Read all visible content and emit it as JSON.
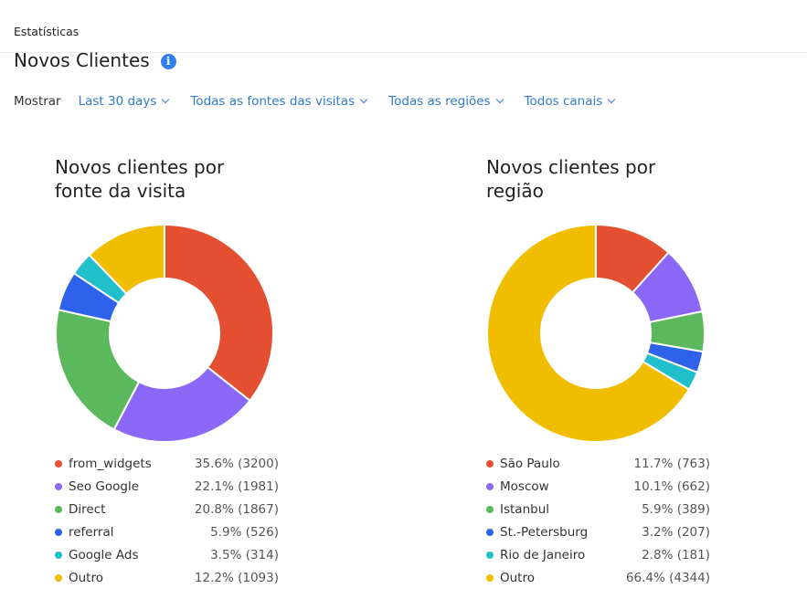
{
  "header": {
    "breadcrumb": "Estatísticas",
    "title": "Novos Clientes"
  },
  "filters": {
    "label": "Mostrar",
    "items": [
      "Last 30 days",
      "Todas as fontes das visitas",
      "Todas as regiões",
      "Todos canais"
    ]
  },
  "chart_data": [
    {
      "type": "pie",
      "title": "Novos clientes por fonte da visita",
      "title_lines": [
        "Novos clientes por",
        "fonte da visita"
      ],
      "categories": [
        "from_widgets",
        "Seo Google",
        "Direct",
        "referral",
        "Google Ads",
        "Outro"
      ],
      "values": [
        3200,
        1981,
        1867,
        526,
        314,
        1093
      ],
      "labels": [
        "35.6% (3200)",
        "22.1% (1981)",
        "20.8% (1867)",
        "5.9% (526)",
        "3.5% (314)",
        "12.2% (1093)"
      ],
      "colors": [
        "#e34f30",
        "#8b67f5",
        "#5cb85c",
        "#2e62ea",
        "#21bfcb",
        "#f0bd00"
      ],
      "legend": "bottom"
    },
    {
      "type": "pie",
      "title": "Novos clientes por região",
      "title_lines": [
        "Novos clientes por",
        "região"
      ],
      "categories": [
        "São Paulo",
        "Moscow",
        "Istanbul",
        "St.-Petersburg",
        "Rio de Janeiro",
        "Outro"
      ],
      "values": [
        763,
        662,
        389,
        207,
        181,
        4344
      ],
      "labels": [
        "11.7% (763)",
        "10.1% (662)",
        "5.9% (389)",
        "3.2% (207)",
        "2.8% (181)",
        "66.4% (4344)"
      ],
      "colors": [
        "#e34f30",
        "#8b67f5",
        "#5cb85c",
        "#2e62ea",
        "#21bfcb",
        "#f0bd00"
      ],
      "legend": "bottom"
    }
  ]
}
